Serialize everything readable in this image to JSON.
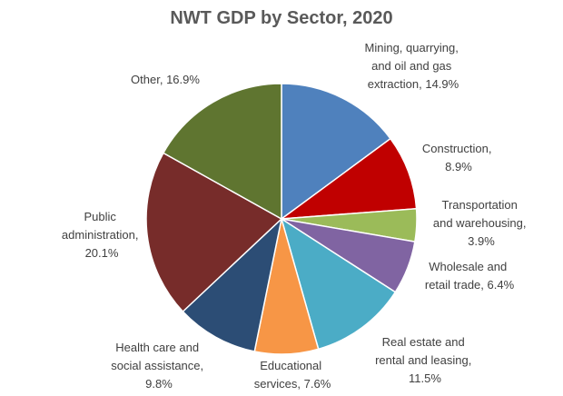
{
  "chart_data": {
    "type": "pie",
    "title": "NWT GDP by Sector, 2020",
    "values": [
      14.9,
      8.9,
      3.9,
      6.4,
      11.5,
      7.6,
      9.8,
      20.1,
      16.9
    ],
    "value_labels": [
      "Mining, quarrying, and oil and gas extraction, 14.9%",
      "Construction, 8.9%",
      "Transportation and warehousing, 3.9%",
      "Wholesale and retail trade, 6.4%",
      "Real estate and rental and leasing, 11.5%",
      "Educational services, 7.6%",
      "Health care and social assistance, 9.8%",
      "Public administration, 20.1%",
      "Other, 16.9%"
    ],
    "colors": [
      "#4f81bd",
      "#c00000",
      "#9bbb59",
      "#8064a2",
      "#4bacc6",
      "#f79646",
      "#2c4d75",
      "#772c2a",
      "#5f7530"
    ]
  }
}
